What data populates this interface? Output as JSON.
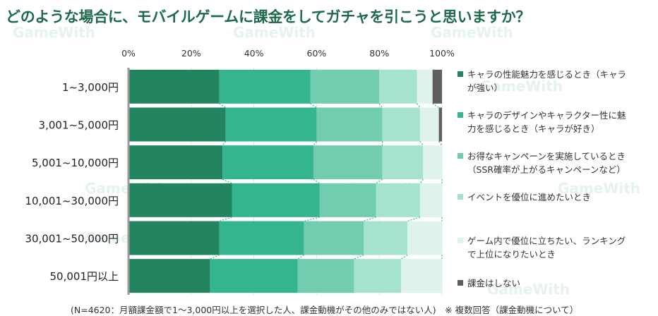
{
  "title": "どのような場合に、モバイルゲームに課金をしてガチャを引こうと思いますか？",
  "watermark_text": "GameWith",
  "footnote": "(N=4620：月額課金額で1～3,000円以上を選択した人、課金動機がその他のみではない人)　※ 複数回答（課金動機について）",
  "colors": {
    "title": "#1d6b4c",
    "series": [
      "#22855f",
      "#35b58f",
      "#72ccaf",
      "#a6e3cf",
      "#dff3ec",
      "#5e5e5e"
    ],
    "connector": "#35b58f",
    "axis": "#9a9a9a",
    "grid": "#e4e4e4"
  },
  "chart_data": {
    "type": "bar",
    "orientation": "horizontal",
    "stacked": true,
    "title": "どのような場合に、モバイルゲームに課金をしてガチャを引こうと思いますか？",
    "xlim": [
      0,
      100
    ],
    "xticks": [
      "0%",
      "20%",
      "40%",
      "60%",
      "80%",
      "100%"
    ],
    "categories": [
      "1~3,000円",
      "3,001~5,000円",
      "5,001~10,000円",
      "10,001~30,000円",
      "30,001~50,000円",
      "50,001円以上"
    ],
    "series": [
      {
        "name": "キャラの性能魅力を感じるとき（キャラが強い）",
        "values": [
          29,
          31,
          30,
          33,
          29,
          26
        ]
      },
      {
        "name": "キャラのデザインやキャラクター性に魅力を感じるとき（キャラが好き）",
        "values": [
          29,
          29,
          29,
          28,
          27,
          28
        ]
      },
      {
        "name": "お得なキャンペーンを実施しているとき（SSR確率が上がるキャンペーンなど）",
        "values": [
          22,
          21,
          22,
          18,
          19,
          18
        ]
      },
      {
        "name": "イベントを優位に進めたいとき",
        "values": [
          12,
          12,
          13,
          14,
          14,
          15
        ]
      },
      {
        "name": "ゲーム内で優位に立ちたい、ランキングで上位になりたいとき",
        "values": [
          5,
          6,
          6,
          7,
          11,
          13
        ]
      },
      {
        "name": "課金はしない",
        "values": [
          3,
          1,
          0,
          0,
          0,
          0
        ]
      }
    ]
  },
  "legend": [
    {
      "line1": "キャラの性能魅力を感じるとき（キャラ",
      "line2": "が強い）"
    },
    {
      "line1": "キャラのデザインやキャラクター性に魅",
      "line2": "力を感じるとき（キャラが好き）"
    },
    {
      "line1": "お得なキャンペーンを実施しているとき",
      "line2": "（SSR確率が上がるキャンペーンなど）"
    },
    {
      "line1": "イベントを優位に進めたいとき",
      "line2": ""
    },
    {
      "line1": "ゲーム内で優位に立ちたい、ランキング",
      "line2": "で上位になりたいとき"
    },
    {
      "line1": "課金はしない",
      "line2": ""
    }
  ]
}
